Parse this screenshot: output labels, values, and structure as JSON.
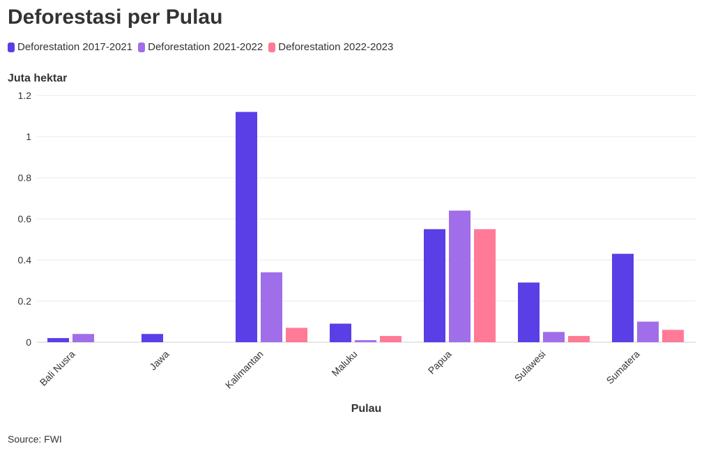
{
  "chart_data": {
    "type": "bar",
    "title": "Deforestasi per Pulau",
    "ylabel": "Juta hektar",
    "xlabel": "Pulau",
    "ylim": [
      0,
      1.2
    ],
    "yticks": [
      0,
      0.2,
      0.4,
      0.6,
      0.8,
      1,
      1.2
    ],
    "ytick_labels": [
      "0",
      "0.2",
      "0.4",
      "0.6",
      "0.8",
      "1",
      "1.2"
    ],
    "categories": [
      "Bali Nusra",
      "Jawa",
      "Kalimantan",
      "Maluku",
      "Papua",
      "Sulawesi",
      "Sumatera"
    ],
    "series": [
      {
        "name": "Deforestation 2017-2021",
        "color": "#5a3ee6",
        "values": [
          0.02,
          0.04,
          1.12,
          0.09,
          0.55,
          0.29,
          0.43
        ]
      },
      {
        "name": "Deforestation 2021-2022",
        "color": "#a06ee8",
        "values": [
          0.04,
          0,
          0.34,
          0.01,
          0.64,
          0.05,
          0.1
        ]
      },
      {
        "name": "Deforestation 2022-2023",
        "color": "#ff7a96",
        "values": [
          0,
          0,
          0.07,
          0.03,
          0.55,
          0.03,
          0.06
        ]
      }
    ],
    "grid": true,
    "legend_position": "top-left"
  },
  "source": "Source: FWI"
}
